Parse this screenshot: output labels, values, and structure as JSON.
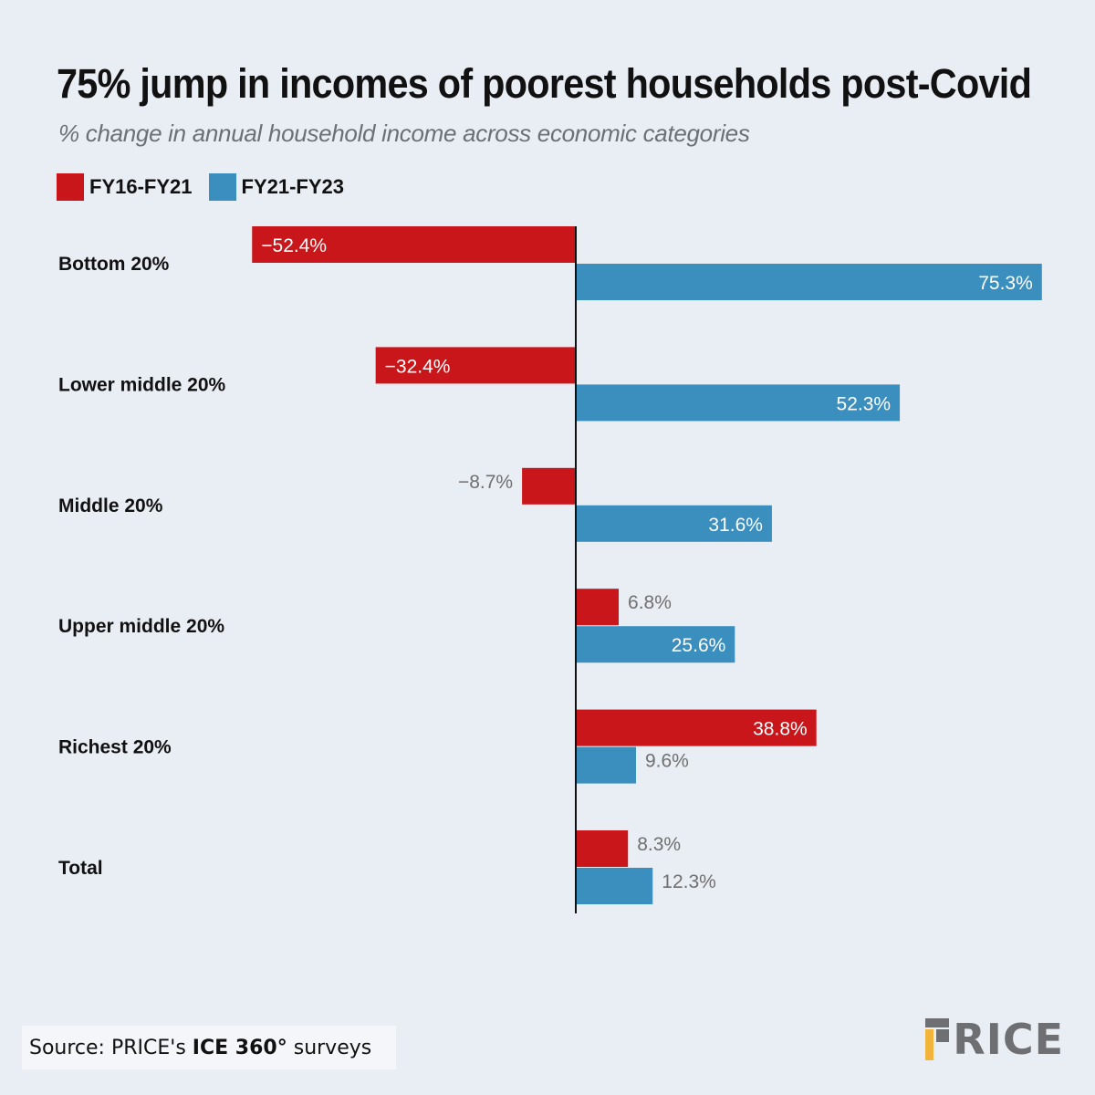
{
  "title": "75% jump in incomes of poorest households post-Covid",
  "subtitle": "% change in annual household income across economic categories",
  "colors": {
    "series1": "#c8161b",
    "series2": "#3a8fbe",
    "background": "#e9edf4",
    "logo_accent": "#f2b53c"
  },
  "source": {
    "prefix": "Source: PRICE's ",
    "bold": "ICE 360°",
    "suffix": " surveys"
  },
  "logo": {
    "text": "RICE",
    "icon": "price-logo-p-icon"
  },
  "chart_data": {
    "type": "bar",
    "orientation": "horizontal",
    "title": "75% jump in incomes of poorest households post-Covid",
    "subtitle": "% change in annual household income across economic categories",
    "categories": [
      "Bottom 20%",
      "Lower middle 20%",
      "Middle 20%",
      "Upper middle 20%",
      "Richest 20%",
      "Total"
    ],
    "series": [
      {
        "name": "FY16-FY21",
        "color": "#c8161b",
        "values": [
          -52.4,
          -32.4,
          -8.7,
          6.8,
          38.8,
          8.3
        ],
        "labels": [
          "−52.4%",
          "−32.4%",
          "−8.7%",
          "6.8%",
          "38.8%",
          "8.3%"
        ]
      },
      {
        "name": "FY21-FY23",
        "color": "#3a8fbe",
        "values": [
          75.3,
          52.3,
          31.6,
          25.6,
          9.6,
          12.3
        ],
        "labels": [
          "75.3%",
          "52.3%",
          "31.6%",
          "25.6%",
          "9.6%",
          "12.3%"
        ]
      }
    ],
    "xlim": [
      -60,
      80
    ],
    "grid": false,
    "legend": "top-left"
  }
}
